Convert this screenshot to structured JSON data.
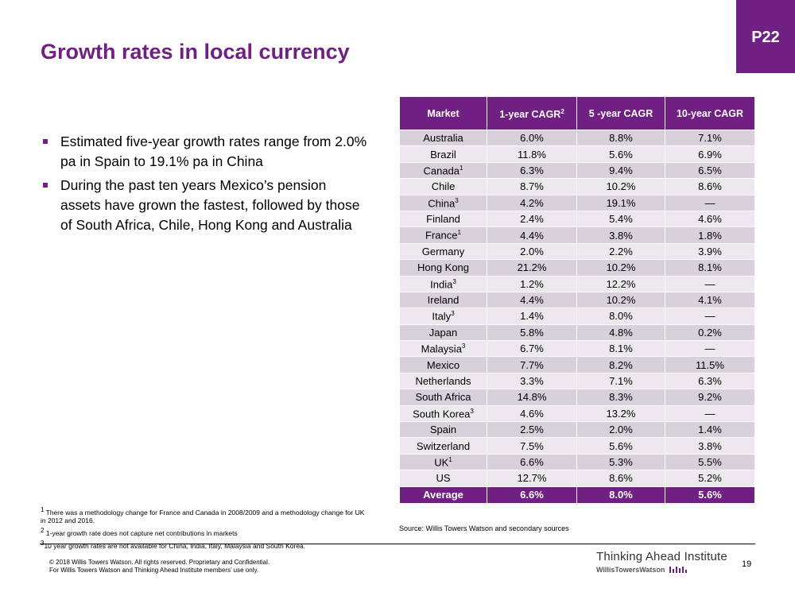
{
  "badge": "P22",
  "title": "Growth rates in local currency",
  "bullets": [
    "Estimated five-year growth rates range from 2.0% pa in Spain to 19.1% pa in China",
    "During the past ten years Mexico’s pension assets have grown the fastest, followed by those of South Africa, Chile, Hong Kong and Australia"
  ],
  "table": {
    "headers": {
      "market": "Market",
      "one_year": "1-year CAGR",
      "one_year_sup": "2",
      "five_year": "5 -year CAGR",
      "ten_year": "10-year CAGR"
    },
    "rows": [
      {
        "market": "Australia",
        "sup": "",
        "y1": "6.0%",
        "y5": "8.8%",
        "y10": "7.1%"
      },
      {
        "market": "Brazil",
        "sup": "",
        "y1": "11.8%",
        "y5": "5.6%",
        "y10": "6.9%"
      },
      {
        "market": "Canada",
        "sup": "1",
        "y1": "6.3%",
        "y5": "9.4%",
        "y10": "6.5%"
      },
      {
        "market": "Chile",
        "sup": "",
        "y1": "8.7%",
        "y5": "10.2%",
        "y10": "8.6%"
      },
      {
        "market": "China",
        "sup": "3",
        "y1": "4.2%",
        "y5": "19.1%",
        "y10": "—"
      },
      {
        "market": "Finland",
        "sup": "",
        "y1": "2.4%",
        "y5": "5.4%",
        "y10": "4.6%"
      },
      {
        "market": "France",
        "sup": "1",
        "y1": "4.4%",
        "y5": "3.8%",
        "y10": "1.8%"
      },
      {
        "market": "Germany",
        "sup": "",
        "y1": "2.0%",
        "y5": "2.2%",
        "y10": "3.9%"
      },
      {
        "market": "Hong Kong",
        "sup": "",
        "y1": "21.2%",
        "y5": "10.2%",
        "y10": "8.1%"
      },
      {
        "market": "India",
        "sup": "3",
        "y1": "1.2%",
        "y5": "12.2%",
        "y10": "—"
      },
      {
        "market": "Ireland",
        "sup": "",
        "y1": "4.4%",
        "y5": "10.2%",
        "y10": "4.1%"
      },
      {
        "market": "Italy",
        "sup": "3",
        "y1": "1.4%",
        "y5": "8.0%",
        "y10": "—"
      },
      {
        "market": "Japan",
        "sup": "",
        "y1": "5.8%",
        "y5": "4.8%",
        "y10": "0.2%"
      },
      {
        "market": "Malaysia",
        "sup": "3",
        "y1": "6.7%",
        "y5": "8.1%",
        "y10": "—"
      },
      {
        "market": "Mexico",
        "sup": "",
        "y1": "7.7%",
        "y5": "8.2%",
        "y10": "11.5%"
      },
      {
        "market": "Netherlands",
        "sup": "",
        "y1": "3.3%",
        "y5": "7.1%",
        "y10": "6.3%"
      },
      {
        "market": "South Africa",
        "sup": "",
        "y1": "14.8%",
        "y5": "8.3%",
        "y10": "9.2%"
      },
      {
        "market": "South Korea",
        "sup": "3",
        "y1": "4.6%",
        "y5": "13.2%",
        "y10": "—"
      },
      {
        "market": "Spain",
        "sup": "",
        "y1": "2.5%",
        "y5": "2.0%",
        "y10": "1.4%"
      },
      {
        "market": "Switzerland",
        "sup": "",
        "y1": "7.5%",
        "y5": "5.6%",
        "y10": "3.8%"
      },
      {
        "market": "UK",
        "sup": "1",
        "y1": "6.6%",
        "y5": "5.3%",
        "y10": "5.5%"
      },
      {
        "market": "US",
        "sup": "",
        "y1": "12.7%",
        "y5": "8.6%",
        "y10": "5.2%"
      }
    ],
    "average": {
      "market": "Average",
      "y1": "6.6%",
      "y5": "8.0%",
      "y10": "5.6%"
    }
  },
  "footnotes": [
    {
      "num": "1",
      "text": " There was a methodology change for France and Canada in 2008/2009 and a methodology change for UK in 2012 and 2016."
    },
    {
      "num": "2",
      "text": " 1-year growth rate does not capture net contributions in markets"
    },
    {
      "num": "3",
      "text": "10 year growth rates are not available for China, India, Italy, Malaysia and South Korea."
    }
  ],
  "source": "Source: Willis Towers Watson and secondary sources",
  "copyright": {
    "line1": "© 2018 Willis Towers Watson. All rights reserved. Proprietary and Confidential.",
    "line2": "For Willis Towers Watson and Thinking Ahead Institute members’ use only."
  },
  "logo": {
    "title": "Thinking Ahead Institute",
    "sub": "WillisTowersWatson"
  },
  "slide_number": "19",
  "colors": {
    "brand": "#702082",
    "row_dark": "#d8d0db",
    "row_light": "#ece8ee"
  }
}
